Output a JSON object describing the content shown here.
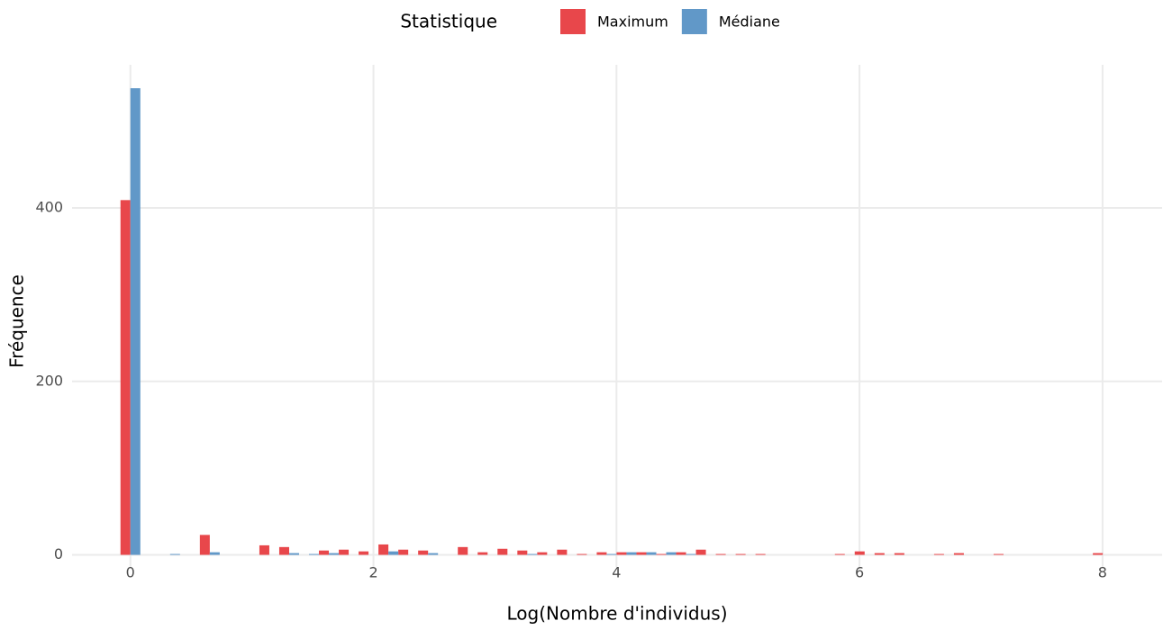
{
  "chart_data": {
    "type": "histogram",
    "xlabel": "Log(Nombre d'individus)",
    "ylabel": "Fréquence",
    "legend_title": "Statistique",
    "legend": "top",
    "bins": [
      -0.0816,
      0.0817,
      0.245,
      0.4083,
      0.5716,
      0.7349,
      0.8982,
      1.0615,
      1.2248,
      1.3881,
      1.5514,
      1.7147,
      1.878,
      2.0413,
      2.2046,
      2.3679,
      2.5312,
      2.6945,
      2.8578,
      3.0211,
      3.1844,
      3.3477,
      3.511,
      3.6743,
      3.8376,
      4.0009,
      4.1642,
      4.3275,
      4.4908,
      4.6541,
      4.8174,
      4.9807,
      5.144,
      5.3073,
      5.4706,
      5.6339,
      5.7972,
      5.9605,
      6.1238,
      6.2871,
      6.4504,
      6.6137,
      6.777,
      6.9403,
      7.1036,
      7.2669,
      7.4302,
      7.5935,
      7.7568,
      7.9201,
      8.0834
    ],
    "series": [
      {
        "name": "Maximum",
        "color": "#e8474b",
        "values": [
          409,
          0,
          0,
          0,
          23,
          0,
          0,
          11,
          9,
          0,
          5,
          6,
          4,
          12,
          6,
          5,
          0,
          9,
          3,
          7,
          5,
          3,
          6,
          1,
          3,
          3,
          3,
          1,
          3,
          6,
          1,
          1,
          1,
          0,
          0,
          0,
          1,
          4,
          2,
          2,
          0,
          1,
          2,
          0,
          1,
          0,
          0,
          0,
          0,
          2
        ]
      },
      {
        "name": "Médiane",
        "color": "#6198c8",
        "values": [
          538,
          0,
          1,
          0,
          3,
          0,
          0,
          0,
          2,
          1,
          2,
          0,
          0,
          4,
          0,
          2,
          0,
          0,
          0,
          0,
          1,
          0,
          0,
          0,
          1,
          3,
          3,
          3,
          1,
          0,
          0,
          0,
          0,
          0,
          0,
          0,
          0,
          0,
          0,
          0,
          0,
          0,
          0,
          0,
          0,
          0,
          0,
          0,
          0,
          0
        ]
      }
    ],
    "xlim": [
      -0.48,
      8.49
    ],
    "ylim": [
      -14,
      565
    ],
    "xticks": [
      0,
      2,
      4,
      6,
      8
    ],
    "yticks": [
      0,
      200,
      400
    ],
    "grid": true
  }
}
